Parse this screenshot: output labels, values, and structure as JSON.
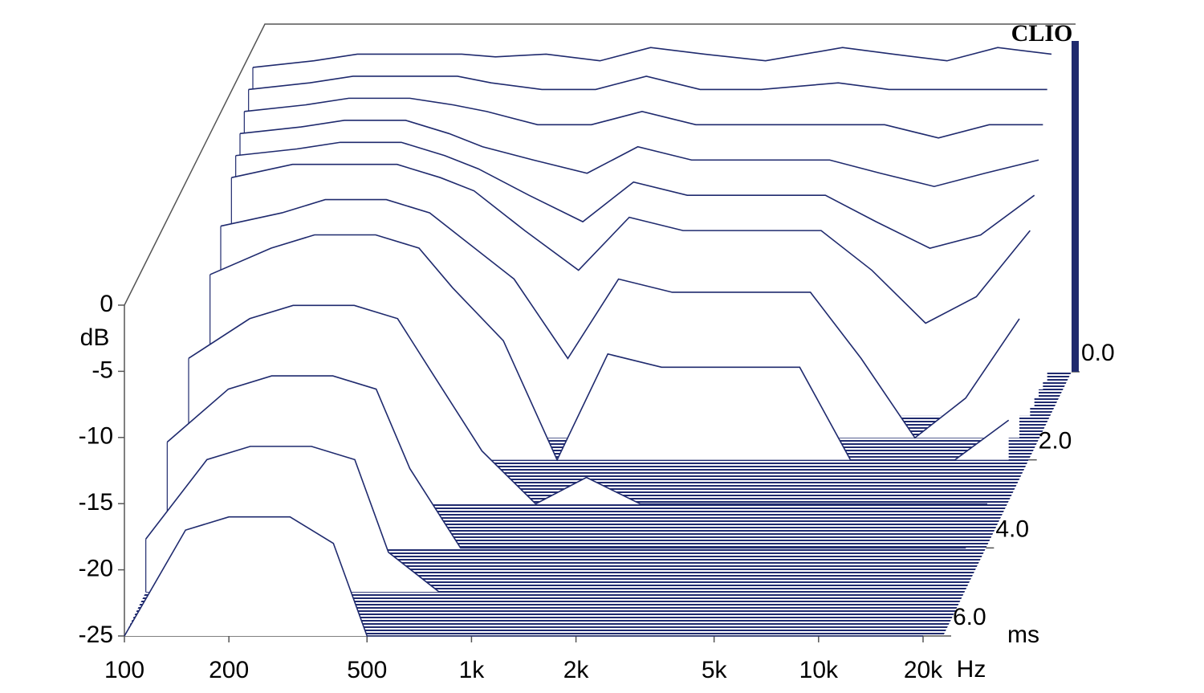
{
  "chart_data": {
    "type": "waterfall",
    "title": "CLIO",
    "xlabel": "Hz",
    "ylabel": "dB",
    "zlabel": "ms",
    "color": "#1f2a6e",
    "xscale": "log",
    "x": [
      100,
      150,
      200,
      300,
      400,
      500,
      700,
      1000,
      1400,
      2000,
      3000,
      5000,
      7000,
      10000,
      14000,
      20000
    ],
    "xlim": [
      100,
      20000
    ],
    "xticks": [
      100,
      200,
      500,
      {
        "value": 1000,
        "label": "1k"
      },
      {
        "value": 2000,
        "label": "2k"
      },
      {
        "value": 5000,
        "label": "5k"
      },
      {
        "value": 10000,
        "label": "10k"
      },
      {
        "value": 20000,
        "label": "20k"
      }
    ],
    "ylim": [
      -25,
      0
    ],
    "yticks": [
      0,
      -5,
      -10,
      -15,
      -20,
      -25
    ],
    "zlim": [
      0,
      6
    ],
    "zticks": [
      {
        "value": 0,
        "label": "0.0"
      },
      {
        "value": 2,
        "label": "2.0"
      },
      {
        "value": 4,
        "label": "4.0"
      },
      {
        "value": 6,
        "label": "6.0"
      }
    ],
    "series": [
      {
        "time": 0,
        "values": [
          -2,
          -1.5,
          -1,
          -1,
          -1,
          -1.2,
          -1,
          -1.5,
          -0.5,
          -1,
          -1.5,
          -0.5,
          -1,
          -1.5,
          -0.5,
          -1
        ]
      },
      {
        "time": 0.2,
        "values": [
          -3,
          -2.5,
          -2,
          -2,
          -2,
          -2.5,
          -3,
          -3,
          -2,
          -3,
          -3,
          -2.5,
          -3,
          -3,
          -3,
          -3
        ]
      },
      {
        "time": 0.4,
        "values": [
          -4,
          -3.5,
          -3,
          -3,
          -3.5,
          -4,
          -5,
          -5,
          -4,
          -5,
          -5,
          -5,
          -5,
          -6,
          -5,
          -5
        ]
      },
      {
        "time": 0.6,
        "values": [
          -5,
          -4.5,
          -4,
          -4,
          -5,
          -6,
          -7,
          -8,
          -6,
          -7,
          -7,
          -7,
          -8,
          -9,
          -8,
          -7
        ]
      },
      {
        "time": 0.8,
        "values": [
          -6,
          -5.5,
          -5,
          -5,
          -6,
          -7,
          -9,
          -11,
          -8,
          -9,
          -9,
          -9,
          -11,
          -13,
          -12,
          -9
        ]
      },
      {
        "time": 1.0,
        "values": [
          -7,
          -6,
          -6,
          -6,
          -7,
          -8,
          -11,
          -14,
          -10,
          -11,
          -11,
          -11,
          -14,
          -18,
          -16,
          -11
        ]
      },
      {
        "time": 1.5,
        "values": [
          -9,
          -8,
          -7,
          -7,
          -8,
          -10,
          -13,
          -19,
          -13,
          -14,
          -14,
          -14,
          -19,
          -25,
          -22,
          -16
        ]
      },
      {
        "time": 2.0,
        "values": [
          -11,
          -9,
          -8,
          -8,
          -9,
          -12,
          -16,
          -25,
          -17,
          -18,
          -18,
          -18,
          -25,
          -25,
          -25,
          -22
        ]
      },
      {
        "time": 3.0,
        "values": [
          -14,
          -11,
          -10,
          -10,
          -11,
          -15,
          -21,
          -25,
          -23,
          -25,
          -25,
          -25,
          -25,
          -25,
          -25,
          -25
        ]
      },
      {
        "time": 4.0,
        "values": [
          -17,
          -13,
          -12,
          -12,
          -13,
          -19,
          -25,
          -25,
          -25,
          -25,
          -25,
          -25,
          -25,
          -25,
          -25,
          -25
        ]
      },
      {
        "time": 5.0,
        "values": [
          -21,
          -15,
          -14,
          -14,
          -15,
          -22,
          -25,
          -25,
          -25,
          -25,
          -25,
          -25,
          -25,
          -25,
          -25,
          -25
        ]
      },
      {
        "time": 6.0,
        "values": [
          -25,
          -17,
          -16,
          -16,
          -18,
          -25,
          -25,
          -25,
          -25,
          -25,
          -25,
          -25,
          -25,
          -25,
          -25,
          -25
        ]
      }
    ]
  }
}
